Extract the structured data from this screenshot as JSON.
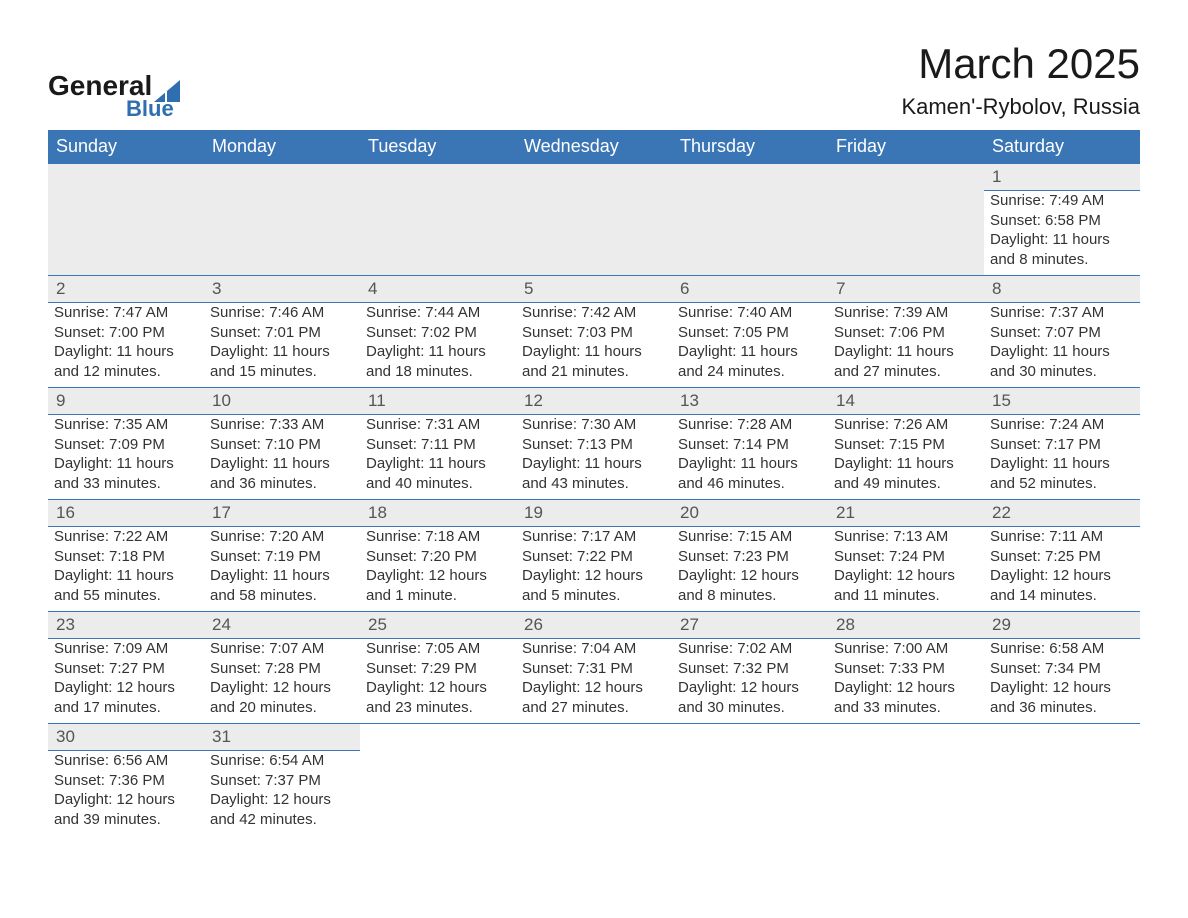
{
  "logo": {
    "main": "General",
    "sub": "Blue",
    "sail_color": "#2f6fb0"
  },
  "title": "March 2025",
  "location": "Kamen'-Rybolov, Russia",
  "colors": {
    "header_bg": "#3a76b5",
    "header_text": "#ffffff",
    "daynum_bg": "#ececec",
    "row_border": "#3a76b5",
    "body_text": "#333333"
  },
  "fonts": {
    "title_size": 42,
    "location_size": 22,
    "dow_size": 18,
    "cell_size": 15
  },
  "days_of_week": [
    "Sunday",
    "Monday",
    "Tuesday",
    "Wednesday",
    "Thursday",
    "Friday",
    "Saturday"
  ],
  "weeks": [
    [
      null,
      null,
      null,
      null,
      null,
      null,
      {
        "n": "1",
        "sr": "Sunrise: 7:49 AM",
        "ss": "Sunset: 6:58 PM",
        "d1": "Daylight: 11 hours",
        "d2": "and 8 minutes."
      }
    ],
    [
      {
        "n": "2",
        "sr": "Sunrise: 7:47 AM",
        "ss": "Sunset: 7:00 PM",
        "d1": "Daylight: 11 hours",
        "d2": "and 12 minutes."
      },
      {
        "n": "3",
        "sr": "Sunrise: 7:46 AM",
        "ss": "Sunset: 7:01 PM",
        "d1": "Daylight: 11 hours",
        "d2": "and 15 minutes."
      },
      {
        "n": "4",
        "sr": "Sunrise: 7:44 AM",
        "ss": "Sunset: 7:02 PM",
        "d1": "Daylight: 11 hours",
        "d2": "and 18 minutes."
      },
      {
        "n": "5",
        "sr": "Sunrise: 7:42 AM",
        "ss": "Sunset: 7:03 PM",
        "d1": "Daylight: 11 hours",
        "d2": "and 21 minutes."
      },
      {
        "n": "6",
        "sr": "Sunrise: 7:40 AM",
        "ss": "Sunset: 7:05 PM",
        "d1": "Daylight: 11 hours",
        "d2": "and 24 minutes."
      },
      {
        "n": "7",
        "sr": "Sunrise: 7:39 AM",
        "ss": "Sunset: 7:06 PM",
        "d1": "Daylight: 11 hours",
        "d2": "and 27 minutes."
      },
      {
        "n": "8",
        "sr": "Sunrise: 7:37 AM",
        "ss": "Sunset: 7:07 PM",
        "d1": "Daylight: 11 hours",
        "d2": "and 30 minutes."
      }
    ],
    [
      {
        "n": "9",
        "sr": "Sunrise: 7:35 AM",
        "ss": "Sunset: 7:09 PM",
        "d1": "Daylight: 11 hours",
        "d2": "and 33 minutes."
      },
      {
        "n": "10",
        "sr": "Sunrise: 7:33 AM",
        "ss": "Sunset: 7:10 PM",
        "d1": "Daylight: 11 hours",
        "d2": "and 36 minutes."
      },
      {
        "n": "11",
        "sr": "Sunrise: 7:31 AM",
        "ss": "Sunset: 7:11 PM",
        "d1": "Daylight: 11 hours",
        "d2": "and 40 minutes."
      },
      {
        "n": "12",
        "sr": "Sunrise: 7:30 AM",
        "ss": "Sunset: 7:13 PM",
        "d1": "Daylight: 11 hours",
        "d2": "and 43 minutes."
      },
      {
        "n": "13",
        "sr": "Sunrise: 7:28 AM",
        "ss": "Sunset: 7:14 PM",
        "d1": "Daylight: 11 hours",
        "d2": "and 46 minutes."
      },
      {
        "n": "14",
        "sr": "Sunrise: 7:26 AM",
        "ss": "Sunset: 7:15 PM",
        "d1": "Daylight: 11 hours",
        "d2": "and 49 minutes."
      },
      {
        "n": "15",
        "sr": "Sunrise: 7:24 AM",
        "ss": "Sunset: 7:17 PM",
        "d1": "Daylight: 11 hours",
        "d2": "and 52 minutes."
      }
    ],
    [
      {
        "n": "16",
        "sr": "Sunrise: 7:22 AM",
        "ss": "Sunset: 7:18 PM",
        "d1": "Daylight: 11 hours",
        "d2": "and 55 minutes."
      },
      {
        "n": "17",
        "sr": "Sunrise: 7:20 AM",
        "ss": "Sunset: 7:19 PM",
        "d1": "Daylight: 11 hours",
        "d2": "and 58 minutes."
      },
      {
        "n": "18",
        "sr": "Sunrise: 7:18 AM",
        "ss": "Sunset: 7:20 PM",
        "d1": "Daylight: 12 hours",
        "d2": "and 1 minute."
      },
      {
        "n": "19",
        "sr": "Sunrise: 7:17 AM",
        "ss": "Sunset: 7:22 PM",
        "d1": "Daylight: 12 hours",
        "d2": "and 5 minutes."
      },
      {
        "n": "20",
        "sr": "Sunrise: 7:15 AM",
        "ss": "Sunset: 7:23 PM",
        "d1": "Daylight: 12 hours",
        "d2": "and 8 minutes."
      },
      {
        "n": "21",
        "sr": "Sunrise: 7:13 AM",
        "ss": "Sunset: 7:24 PM",
        "d1": "Daylight: 12 hours",
        "d2": "and 11 minutes."
      },
      {
        "n": "22",
        "sr": "Sunrise: 7:11 AM",
        "ss": "Sunset: 7:25 PM",
        "d1": "Daylight: 12 hours",
        "d2": "and 14 minutes."
      }
    ],
    [
      {
        "n": "23",
        "sr": "Sunrise: 7:09 AM",
        "ss": "Sunset: 7:27 PM",
        "d1": "Daylight: 12 hours",
        "d2": "and 17 minutes."
      },
      {
        "n": "24",
        "sr": "Sunrise: 7:07 AM",
        "ss": "Sunset: 7:28 PM",
        "d1": "Daylight: 12 hours",
        "d2": "and 20 minutes."
      },
      {
        "n": "25",
        "sr": "Sunrise: 7:05 AM",
        "ss": "Sunset: 7:29 PM",
        "d1": "Daylight: 12 hours",
        "d2": "and 23 minutes."
      },
      {
        "n": "26",
        "sr": "Sunrise: 7:04 AM",
        "ss": "Sunset: 7:31 PM",
        "d1": "Daylight: 12 hours",
        "d2": "and 27 minutes."
      },
      {
        "n": "27",
        "sr": "Sunrise: 7:02 AM",
        "ss": "Sunset: 7:32 PM",
        "d1": "Daylight: 12 hours",
        "d2": "and 30 minutes."
      },
      {
        "n": "28",
        "sr": "Sunrise: 7:00 AM",
        "ss": "Sunset: 7:33 PM",
        "d1": "Daylight: 12 hours",
        "d2": "and 33 minutes."
      },
      {
        "n": "29",
        "sr": "Sunrise: 6:58 AM",
        "ss": "Sunset: 7:34 PM",
        "d1": "Daylight: 12 hours",
        "d2": "and 36 minutes."
      }
    ],
    [
      {
        "n": "30",
        "sr": "Sunrise: 6:56 AM",
        "ss": "Sunset: 7:36 PM",
        "d1": "Daylight: 12 hours",
        "d2": "and 39 minutes."
      },
      {
        "n": "31",
        "sr": "Sunrise: 6:54 AM",
        "ss": "Sunset: 7:37 PM",
        "d1": "Daylight: 12 hours",
        "d2": "and 42 minutes."
      },
      null,
      null,
      null,
      null,
      null
    ]
  ]
}
